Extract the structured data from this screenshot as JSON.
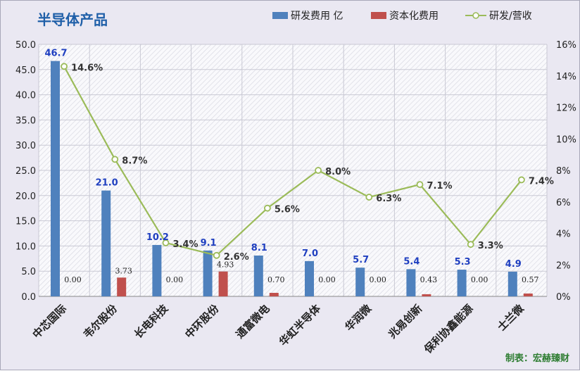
{
  "chart_data": {
    "type": "bar",
    "title": "半导体产品",
    "categories": [
      "中芯国际",
      "韦尔股份",
      "长电科技",
      "中环股份",
      "通富微电",
      "华虹半导体",
      "华润微",
      "兆易创新",
      "保利协鑫能源",
      "士兰微"
    ],
    "series": [
      {
        "name": "研发费用 亿",
        "type": "bar",
        "color": "#4f81bd",
        "axis": "left",
        "values": [
          46.7,
          21.0,
          10.2,
          9.1,
          8.1,
          7.0,
          5.7,
          5.4,
          5.3,
          4.9
        ],
        "labels": [
          "46.7",
          "21.0",
          "10.2",
          "9.1",
          "8.1",
          "7.0",
          "5.7",
          "5.4",
          "5.3",
          "4.9"
        ]
      },
      {
        "name": "资本化费用",
        "type": "bar",
        "color": "#c0504d",
        "axis": "left",
        "values": [
          0.0,
          3.73,
          0.0,
          4.93,
          0.7,
          0.0,
          0.0,
          0.43,
          0.0,
          0.57
        ],
        "labels": [
          "0.00",
          "3.73",
          "0.00",
          "4.93",
          "0.70",
          "0.00",
          "0.00",
          "0.43",
          "0.00",
          "0.57"
        ]
      },
      {
        "name": "研发/营收",
        "type": "line",
        "color": "#9bbb59",
        "axis": "right",
        "values": [
          14.6,
          8.7,
          3.4,
          2.6,
          5.6,
          8.0,
          6.3,
          7.1,
          3.3,
          7.4
        ],
        "labels": [
          "14.6%",
          "8.7%",
          "3.4%",
          "2.6%",
          "5.6%",
          "8.0%",
          "6.3%",
          "7.1%",
          "3.3%",
          "7.4%"
        ]
      }
    ],
    "y_left": {
      "min": 0,
      "max": 50,
      "step": 5,
      "ticks": [
        "0.0",
        "5.0",
        "10.0",
        "15.0",
        "20.0",
        "25.0",
        "30.0",
        "35.0",
        "40.0",
        "45.0",
        "50.0"
      ]
    },
    "y_right": {
      "min": 0,
      "max": 16,
      "step": 2,
      "unit": "%",
      "ticks": [
        "0%",
        "2%",
        "4%",
        "6%",
        "8%",
        "10%",
        "12%",
        "14%",
        "16%"
      ]
    },
    "grid": true,
    "legend_position": "top-right"
  },
  "credit": "制表：宏赫臻财"
}
